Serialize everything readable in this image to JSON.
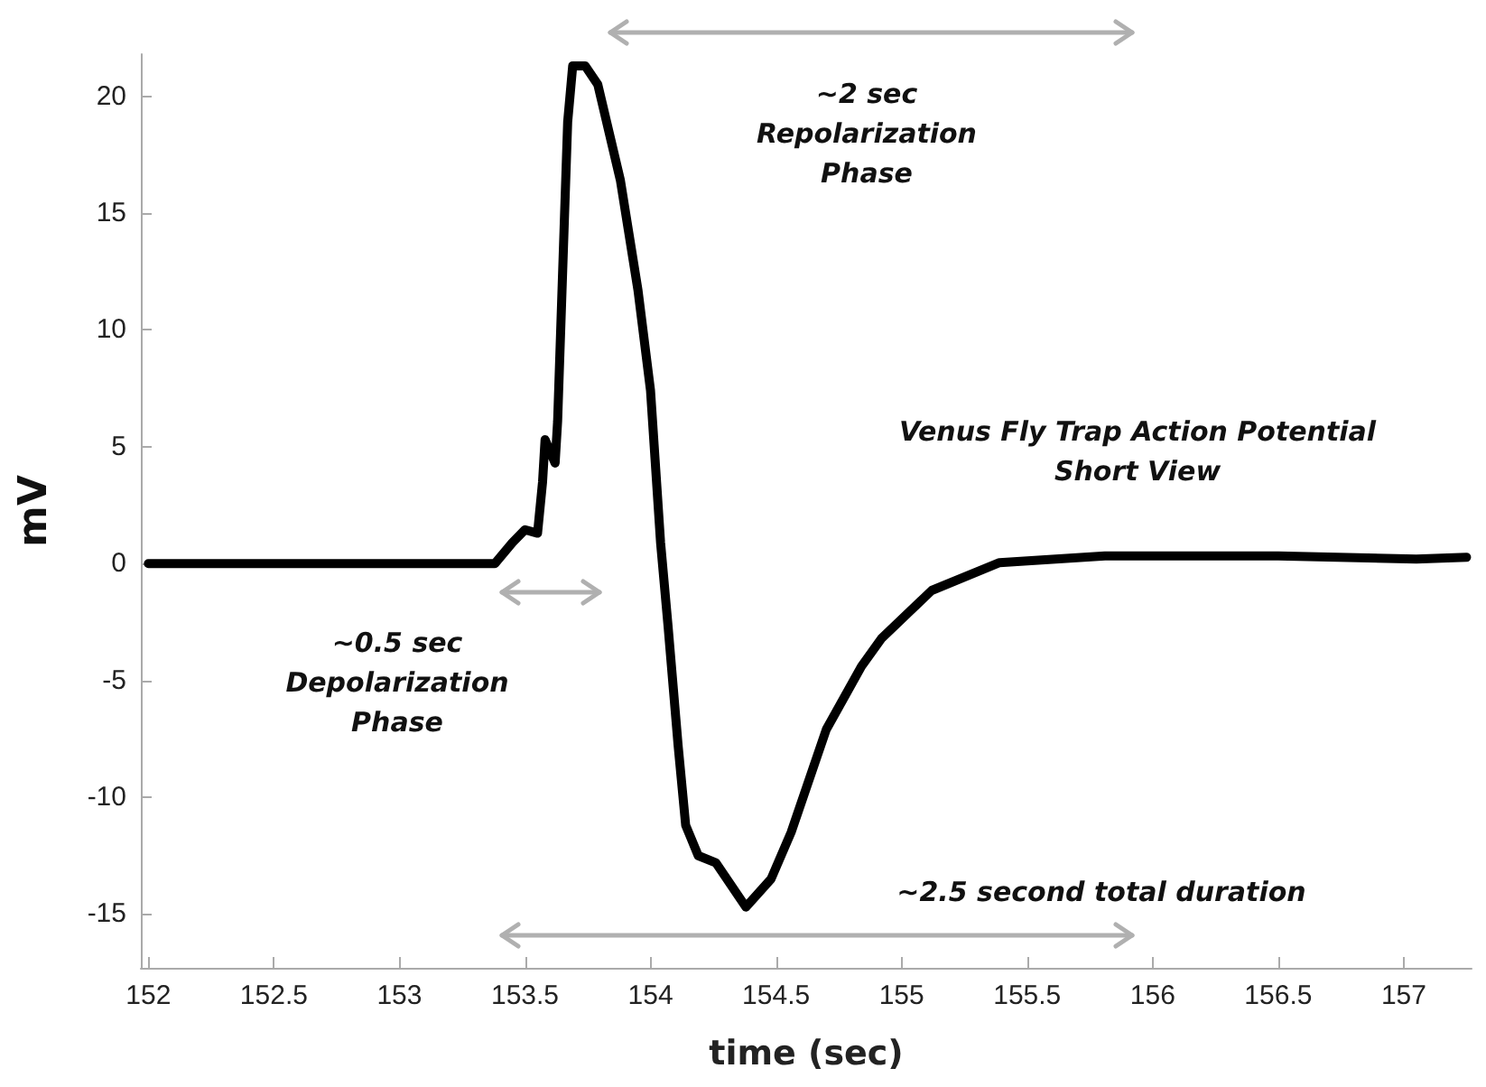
{
  "chart_data": {
    "type": "line",
    "xlabel": "time (sec)",
    "ylabel": "mV",
    "x": [
      152.0,
      153.0,
      153.38,
      153.45,
      153.5,
      153.55,
      153.57,
      153.58,
      153.62,
      153.63,
      153.67,
      153.69,
      153.74,
      153.79,
      153.88,
      153.95,
      154.0,
      154.04,
      154.07,
      154.11,
      154.14,
      154.19,
      154.26,
      154.38,
      154.48,
      154.56,
      154.7,
      154.84,
      154.92,
      155.12,
      155.39,
      155.81,
      156.5,
      157.05,
      157.25
    ],
    "series": [
      {
        "color": "#000000",
        "values": [
          0.0,
          0.0,
          0.0,
          0.9,
          1.45,
          1.3,
          3.5,
          5.3,
          4.3,
          6.1,
          18.9,
          21.3,
          21.3,
          20.5,
          16.4,
          11.7,
          7.4,
          0.9,
          -2.7,
          -7.8,
          -11.2,
          -12.5,
          -12.8,
          -14.7,
          -13.5,
          -11.5,
          -7.1,
          -4.4,
          -3.2,
          -1.15,
          0.04,
          0.33,
          0.33,
          0.19,
          0.27
        ]
      }
    ],
    "xlim": [
      151.97,
      157.27
    ],
    "ylim": [
      -17.3,
      21.8
    ],
    "xticks": [
      152,
      152.5,
      153,
      153.5,
      154,
      154.5,
      155,
      155.5,
      156,
      156.5,
      157
    ],
    "yticks": [
      -15,
      -10,
      -5,
      0,
      5,
      10,
      15,
      20
    ],
    "grid": false,
    "marker": "none",
    "line_style": "solid",
    "annotations": [
      "~2 sec\nRepolarization\nPhase",
      "Venus Fly Trap Action Potential\nShort View",
      "~0.5 sec\nDepolarization\nPhase",
      "~2.5 second total duration"
    ]
  }
}
